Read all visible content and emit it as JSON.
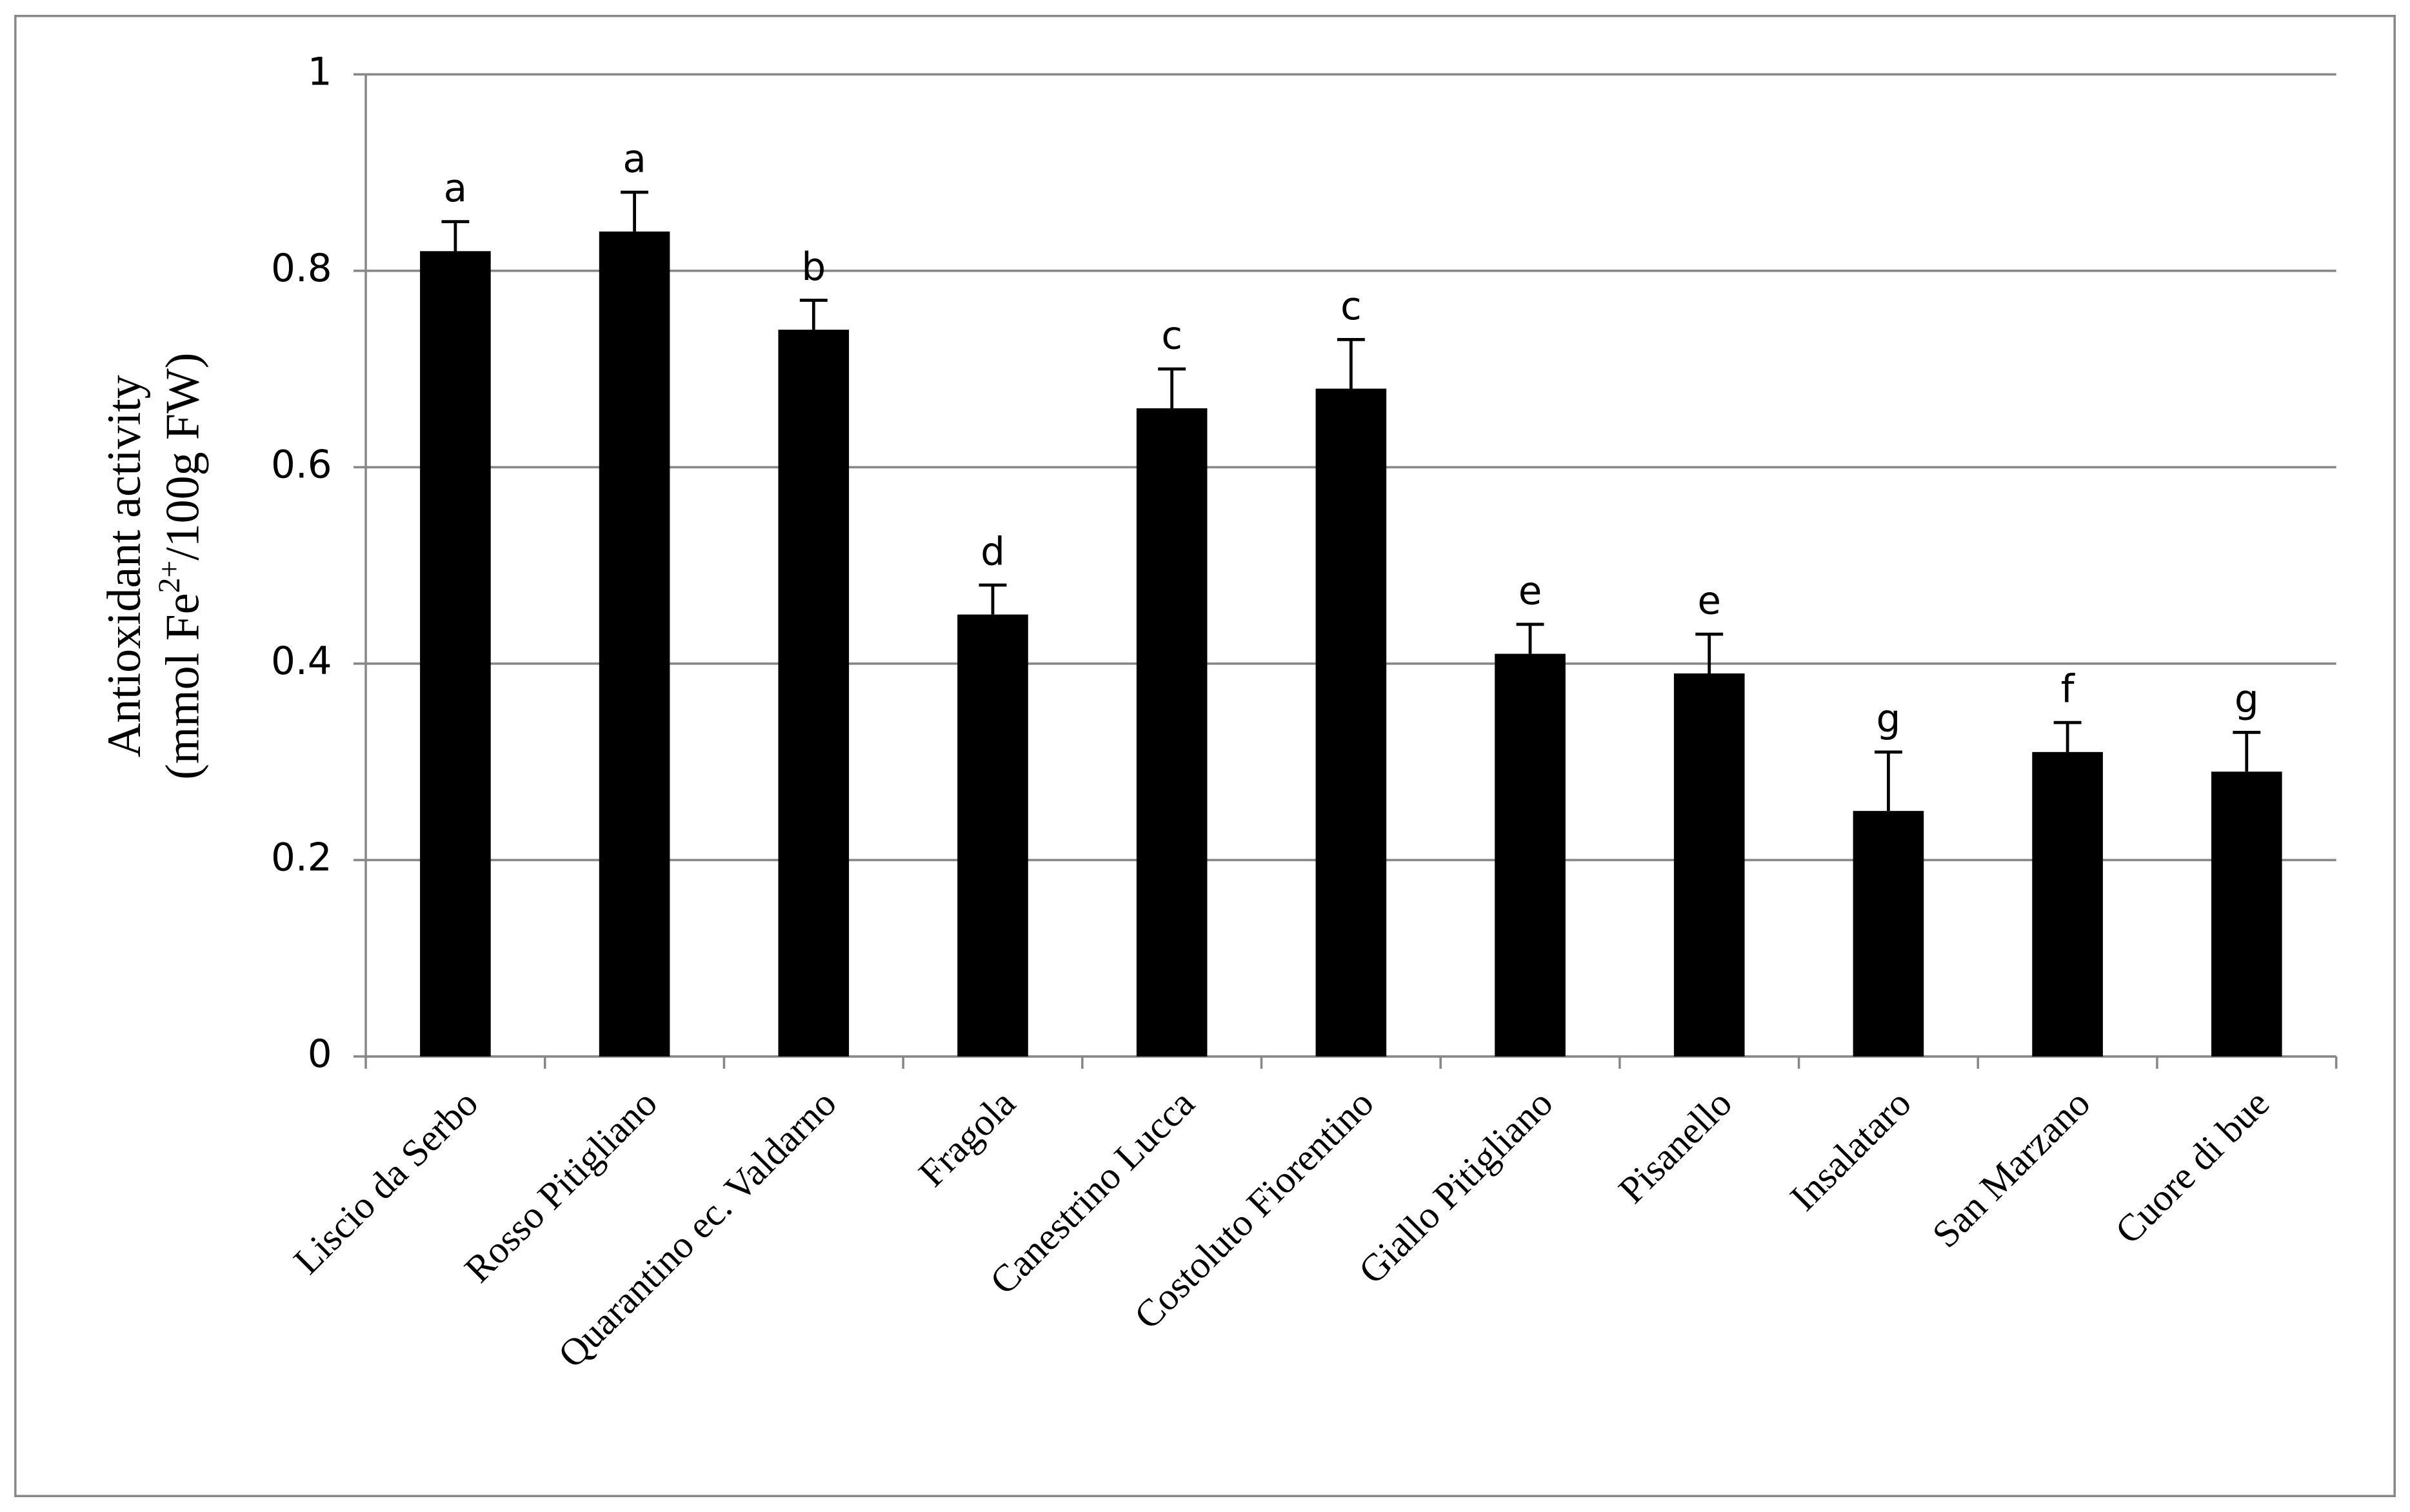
{
  "chart_data": {
    "type": "bar",
    "ylabel_line1": "Antioxidant activity",
    "ylabel_line2": {
      "before": "(mmol Fe",
      "sup": "2+",
      "after": "/100g FW)"
    },
    "categories": [
      "Liscio da Serbo",
      "Rosso Pitigliano",
      "Quarantino ec. Valdarno",
      "Fragola",
      "Canestrino Lucca",
      "Costoluto Fiorentino",
      "Giallo Pitigliano",
      "Pisanello",
      "Insalataro",
      "San Marzano",
      "Cuore di bue"
    ],
    "values": [
      0.82,
      0.84,
      0.74,
      0.45,
      0.66,
      0.68,
      0.41,
      0.39,
      0.25,
      0.31,
      0.29
    ],
    "errors": [
      0.03,
      0.04,
      0.03,
      0.03,
      0.04,
      0.05,
      0.03,
      0.04,
      0.06,
      0.03,
      0.04
    ],
    "annotations": [
      "a",
      "a",
      "b",
      "d",
      "c",
      "c",
      "e",
      "e",
      "g",
      "f",
      "g"
    ],
    "color": "#000000",
    "ylim": [
      0,
      1
    ],
    "yticks": [
      0,
      0.2,
      0.4,
      0.6,
      0.8,
      1
    ],
    "grid": true
  }
}
